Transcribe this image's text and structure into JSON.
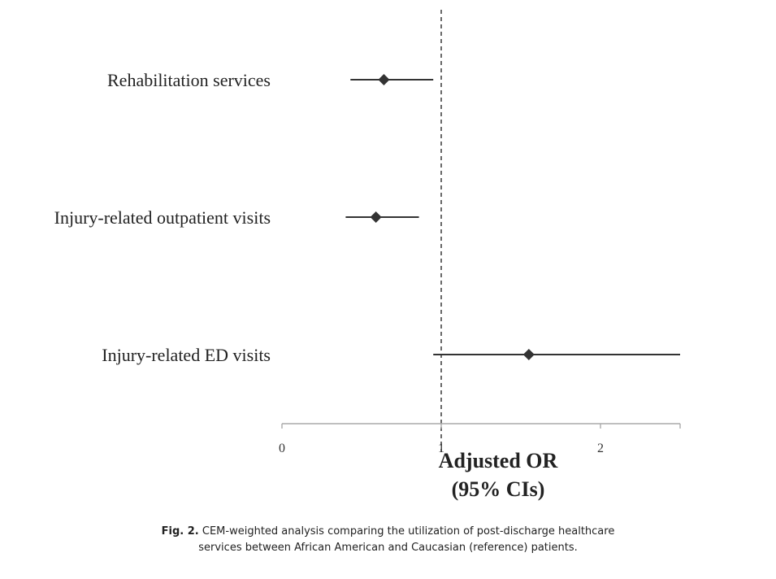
{
  "chart_data": {
    "type": "forest",
    "categories": [
      "Rehabilitation services",
      "Injury-related outpatient visits",
      "Injury-related ED visits"
    ],
    "estimates": [
      0.64,
      0.59,
      1.55
    ],
    "ci_lower": [
      0.43,
      0.4,
      0.95
    ],
    "ci_upper": [
      0.95,
      0.86,
      2.5
    ],
    "reference_line": 1,
    "xlim": [
      0,
      2.5
    ],
    "xticks": [
      "0",
      "1",
      "2"
    ],
    "xlabel_line1": "Adjusted OR",
    "xlabel_line2": "(95% CIs)",
    "marker": "diamond",
    "colors": {
      "marks": "#333333",
      "axis": "#aaaaaa",
      "reference": "#444444"
    }
  },
  "caption": {
    "label": "Fig. 2.",
    "line1": "CEM-weighted analysis comparing the utilization of post-discharge healthcare",
    "line2": "services between African American and Caucasian (reference) patients."
  }
}
